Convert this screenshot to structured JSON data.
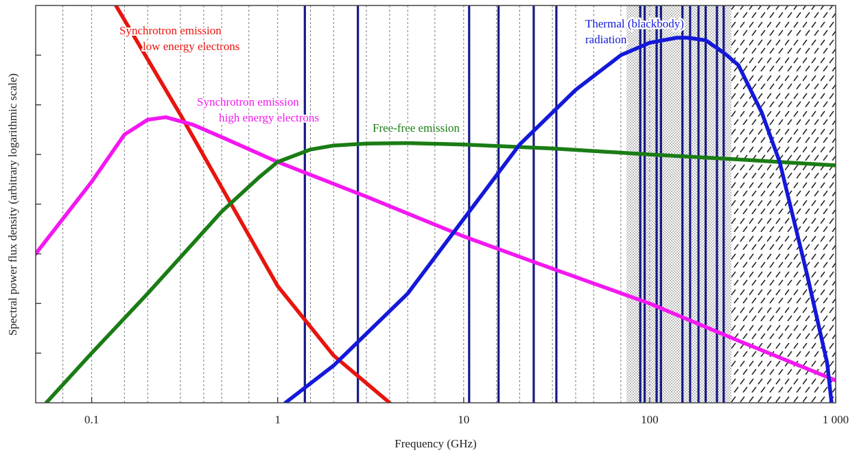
{
  "chart_data": {
    "type": "line",
    "title": "",
    "xlabel": "Frequency (GHz)",
    "ylabel": "Spectral power flux density (arbitrary logarithmic scale)",
    "x_scale": "log",
    "xlim": [
      0.05,
      1000
    ],
    "ylim": [
      0,
      8
    ],
    "x_ticks": [
      {
        "value": 0.1,
        "label": "0.1"
      },
      {
        "value": 1,
        "label": "1"
      },
      {
        "value": 10,
        "label": "10"
      },
      {
        "value": 100,
        "label": "100"
      },
      {
        "value": 1000,
        "label": "1 000"
      }
    ],
    "y_tick_values": [
      1,
      2,
      3,
      4,
      5,
      6,
      7
    ],
    "minor_grid_x": [
      0.07,
      0.15,
      0.2,
      0.3,
      0.4,
      0.5,
      0.7,
      1.5,
      2,
      3,
      4,
      5,
      7,
      15,
      20,
      30,
      40,
      50,
      70
    ],
    "grid": "dotted vertical",
    "legend": "none",
    "band_lines_x": [
      1.4,
      2.7,
      10.7,
      15.4,
      23.8,
      31.5,
      89,
      94,
      109,
      115,
      150,
      165,
      183,
      200,
      230,
      250
    ],
    "hatched_regions": [
      {
        "x": [
          75,
          275
        ],
        "pattern": "dots"
      },
      {
        "x": [
          275,
          1000
        ],
        "pattern": "dashed-diagonal"
      }
    ],
    "series": [
      {
        "name": "Synchrotron emission low energy electrons",
        "color": "#e8140e",
        "x": [
          0.135,
          0.3,
          1,
          2,
          4
        ],
        "y": [
          8,
          5.8,
          2.35,
          0.95,
          0
        ]
      },
      {
        "name": "Synchrotron emission high energy electrons",
        "color": "#f318f0",
        "x": [
          0.05,
          0.1,
          0.15,
          0.2,
          0.25,
          0.35,
          0.5,
          1,
          3,
          10,
          30,
          100,
          300,
          1000
        ],
        "y": [
          3,
          4.45,
          5.4,
          5.7,
          5.75,
          5.6,
          5.35,
          4.85,
          4.15,
          3.35,
          2.7,
          2.0,
          1.25,
          0.45
        ]
      },
      {
        "name": "Free-free emission",
        "color": "#1a7c14",
        "x": [
          0.057,
          0.1,
          0.2,
          0.5,
          0.8,
          1,
          1.5,
          2,
          3,
          5,
          10,
          30,
          100,
          300,
          1000
        ],
        "y": [
          0,
          1.0,
          2.2,
          3.85,
          4.55,
          4.85,
          5.1,
          5.18,
          5.22,
          5.23,
          5.2,
          5.12,
          5.0,
          4.9,
          4.78
        ]
      },
      {
        "name": "Thermal (blackbody) radiation",
        "color": "#1418d8",
        "x": [
          1.1,
          2,
          5,
          10,
          20,
          40,
          70,
          100,
          140,
          160,
          200,
          250,
          300,
          400,
          500,
          700,
          900,
          950
        ],
        "y": [
          0,
          0.75,
          2.2,
          3.7,
          5.2,
          6.3,
          7.0,
          7.25,
          7.35,
          7.35,
          7.3,
          7.05,
          6.8,
          5.85,
          4.85,
          2.6,
          0.8,
          0
        ]
      }
    ],
    "annotations": [
      {
        "lines": [
          "Synchrotron emission",
          "low energy electrons"
        ],
        "color": "#e8140e"
      },
      {
        "lines": [
          "Synchrotron emission",
          "high energy electrons"
        ],
        "color": "#f318f0"
      },
      {
        "lines": [
          "Free-free emission"
        ],
        "color": "#1a7c14"
      },
      {
        "lines": [
          "Thermal (blackbody)",
          "radiation"
        ],
        "color": "#1418d8"
      }
    ]
  }
}
